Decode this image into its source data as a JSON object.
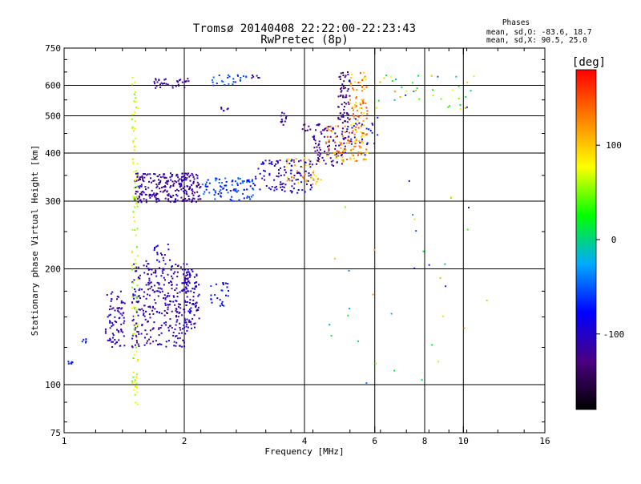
{
  "chart_data": {
    "type": "scatter",
    "title": "Tromsø 20140408 22:22:00-22:23:43",
    "subtitle": "RwPretec (8p)",
    "xlabel": "Frequency [MHz]",
    "ylabel": "Stationary phase Virtual Height [km]",
    "x_scale": "log",
    "y_scale": "log",
    "xlim": [
      1,
      16
    ],
    "ylim": [
      75,
      750
    ],
    "x_ticks": [
      1,
      2,
      4,
      6,
      8,
      10,
      16
    ],
    "x_tick_labels": [
      "1",
      "2",
      "4",
      "6",
      "8",
      "10",
      "16"
    ],
    "y_ticks": [
      75,
      100,
      200,
      300,
      400,
      500,
      600,
      750
    ],
    "y_tick_labels": [
      "75",
      "100",
      "200",
      "300",
      "400",
      "500",
      "600",
      "750"
    ],
    "grid_x": [
      2,
      4,
      6,
      8,
      10
    ],
    "grid_y": [
      100,
      200,
      300,
      400,
      500,
      600
    ],
    "grid": true,
    "legend": {
      "header": "Phases",
      "line_o": "mean, sd,O: -83.6, 18.7",
      "line_x": "mean, sd,X:  90.5, 25.0"
    },
    "colorbar": {
      "label": "[deg]",
      "range": [
        -180,
        180
      ],
      "ticks": [
        100,
        0,
        -100
      ],
      "tick_labels": [
        "100",
        "0",
        "-100"
      ],
      "colors": [
        "#000000",
        "#4b0082",
        "#0000ff",
        "#00aaff",
        "#00ff00",
        "#ffff00",
        "#ff8000",
        "#ff0000"
      ]
    },
    "clusters": [
      {
        "x": [
          1.02,
          1.05
        ],
        "y": [
          113,
          115
        ],
        "phase": [
          -70,
          -70
        ],
        "n": 6
      },
      {
        "x": [
          1.1,
          1.14
        ],
        "y": [
          128,
          132
        ],
        "phase": [
          -75,
          -60
        ],
        "n": 5
      },
      {
        "x": [
          1.27,
          1.42
        ],
        "y": [
          125,
          175
        ],
        "phase": [
          -130,
          -85
        ],
        "n": 80
      },
      {
        "x": [
          1.48,
          2.05
        ],
        "y": [
          125,
          210
        ],
        "phase": [
          -135,
          -85
        ],
        "n": 320
      },
      {
        "x": [
          1.68,
          1.85
        ],
        "y": [
          210,
          232
        ],
        "phase": [
          -110,
          -70
        ],
        "n": 18
      },
      {
        "x": [
          2.0,
          2.18
        ],
        "y": [
          140,
          200
        ],
        "phase": [
          -120,
          -80
        ],
        "n": 90
      },
      {
        "x": [
          2.3,
          2.58
        ],
        "y": [
          160,
          185
        ],
        "phase": [
          -90,
          -55
        ],
        "n": 25
      },
      {
        "x": [
          1.5,
          2.2
        ],
        "y": [
          298,
          355
        ],
        "phase": [
          -140,
          -95
        ],
        "n": 260
      },
      {
        "x": [
          2.2,
          3.0
        ],
        "y": [
          300,
          345
        ],
        "phase": [
          -80,
          -40
        ],
        "n": 90
      },
      {
        "x": [
          3.0,
          4.2
        ],
        "y": [
          315,
          385
        ],
        "phase": [
          -120,
          -70
        ],
        "n": 110
      },
      {
        "x": [
          3.6,
          4.4
        ],
        "y": [
          330,
          390
        ],
        "phase": [
          80,
          140
        ],
        "n": 40
      },
      {
        "x": [
          4.2,
          5.1
        ],
        "y": [
          370,
          480
        ],
        "phase": [
          -150,
          -100
        ],
        "n": 90
      },
      {
        "x": [
          4.5,
          5.2
        ],
        "y": [
          380,
          470
        ],
        "phase": [
          90,
          160
        ],
        "n": 50
      },
      {
        "x": [
          4.85,
          5.2
        ],
        "y": [
          480,
          650
        ],
        "phase": [
          -150,
          -110
        ],
        "n": 60
      },
      {
        "x": [
          5.2,
          5.75
        ],
        "y": [
          380,
          650
        ],
        "phase": [
          80,
          160
        ],
        "n": 120
      },
      {
        "x": [
          5.0,
          6.1
        ],
        "y": [
          420,
          500
        ],
        "phase": [
          -120,
          -60
        ],
        "n": 30
      },
      {
        "x": [
          1.68,
          2.06
        ],
        "y": [
          590,
          625
        ],
        "phase": [
          -130,
          -100
        ],
        "n": 35
      },
      {
        "x": [
          2.35,
          2.95
        ],
        "y": [
          600,
          640
        ],
        "phase": [
          -70,
          -40
        ],
        "n": 25
      },
      {
        "x": [
          2.95,
          3.1
        ],
        "y": [
          625,
          640
        ],
        "phase": [
          -130,
          -100
        ],
        "n": 6
      },
      {
        "x": [
          2.45,
          2.58
        ],
        "y": [
          515,
          528
        ],
        "phase": [
          -120,
          -90
        ],
        "n": 6
      },
      {
        "x": [
          3.48,
          3.62
        ],
        "y": [
          470,
          510
        ],
        "phase": [
          -120,
          -90
        ],
        "n": 12
      },
      {
        "x": [
          3.95,
          4.15
        ],
        "y": [
          455,
          475
        ],
        "phase": [
          -160,
          -120
        ],
        "n": 8
      },
      {
        "x": [
          1.48,
          1.53
        ],
        "y": [
          88,
          665
        ],
        "phase": [
          40,
          90
        ],
        "n": 110
      },
      {
        "x": [
          6.0,
          10.8
        ],
        "y": [
          520,
          640
        ],
        "phase": [
          -60,
          120
        ],
        "n": 40
      },
      {
        "x": [
          4.6,
          12.0
        ],
        "y": [
          95,
          420
        ],
        "phase": [
          -120,
          120
        ],
        "n": 35
      }
    ]
  }
}
